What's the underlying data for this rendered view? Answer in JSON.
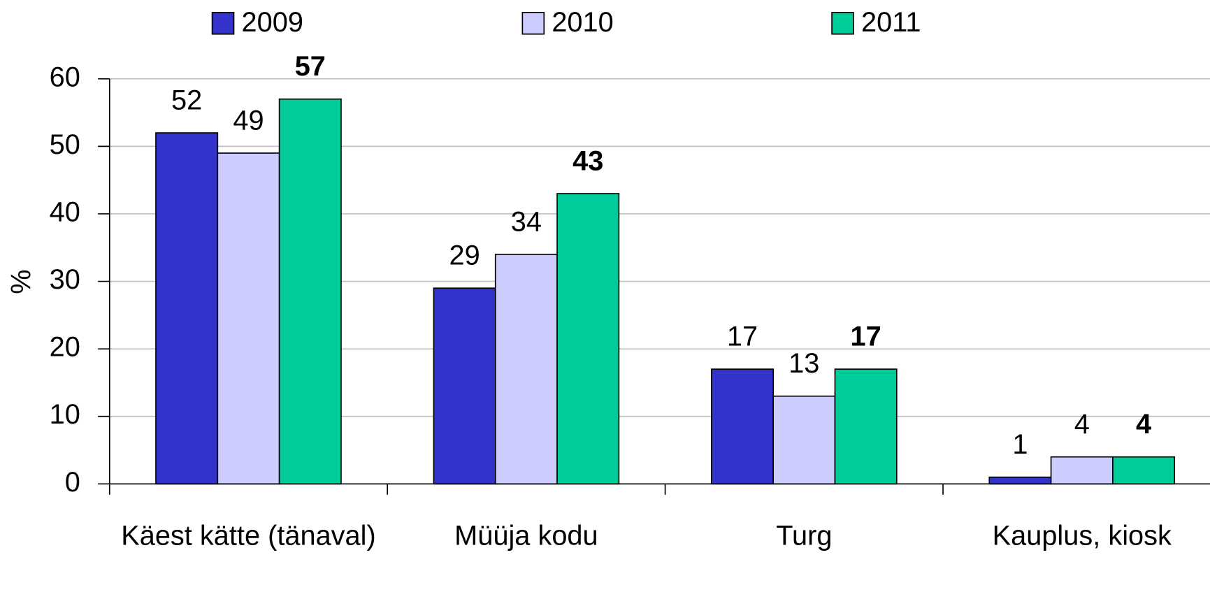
{
  "chart_data": {
    "type": "bar",
    "y_label": "%",
    "categories": [
      "Käest kätte (tänaval)",
      "Müüja kodu",
      "Turg",
      "Kauplus, kiosk"
    ],
    "series": [
      {
        "name": "2009",
        "color": "#3333cc",
        "values": [
          52,
          29,
          17,
          1
        ]
      },
      {
        "name": "2010",
        "color": "#ccccff",
        "values": [
          49,
          34,
          13,
          4
        ]
      },
      {
        "name": "2011",
        "color": "#00cc99",
        "values": [
          57,
          43,
          17,
          4
        ],
        "label_bold": true
      }
    ],
    "ylim": [
      0,
      60
    ],
    "yticks": [
      0,
      10,
      20,
      30,
      40,
      50,
      60
    ],
    "grid": true,
    "legend": "top"
  }
}
